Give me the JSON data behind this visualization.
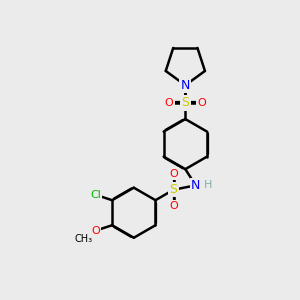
{
  "bg_color": "#ebebeb",
  "atom_colors": {
    "C": "#000000",
    "N": "#0000ee",
    "O": "#ff0000",
    "S": "#cccc00",
    "Cl": "#00bb00",
    "H": "#7fafaf"
  },
  "bond_color": "#000000",
  "bond_width": 1.8,
  "fig_size": [
    3.0,
    3.0
  ],
  "dpi": 100
}
